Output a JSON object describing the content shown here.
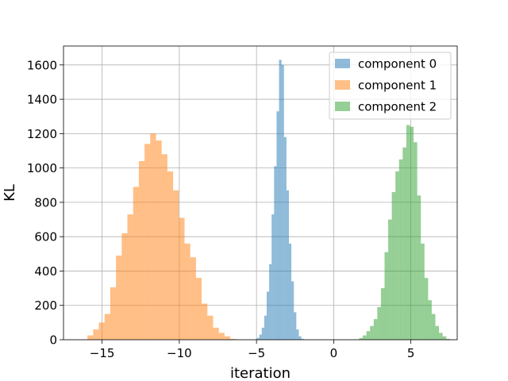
{
  "chart_data": {
    "type": "bar",
    "title": "",
    "xlabel": "iteration",
    "ylabel": "KL",
    "xlim": [
      -17.5,
      8.0
    ],
    "ylim": [
      0,
      1710
    ],
    "grid": true,
    "legend_position": "top-right",
    "xticks": [
      -15,
      -10,
      -5,
      0,
      5
    ],
    "xtick_labels": [
      "−15",
      "−10",
      "−5",
      "0",
      "5"
    ],
    "yticks": [
      0,
      200,
      400,
      600,
      800,
      1000,
      1200,
      1400,
      1600
    ],
    "ytick_labels": [
      "0",
      "200",
      "400",
      "600",
      "800",
      "1000",
      "1200",
      "1400",
      "1600"
    ],
    "series": [
      {
        "name": "component 0",
        "color": "#1f77b4",
        "alpha": 0.5,
        "bin_start": -4.98,
        "bin_width": 0.16,
        "counts": [
          10,
          30,
          70,
          140,
          280,
          440,
          730,
          1010,
          1330,
          1630,
          1600,
          1180,
          870,
          560,
          340,
          160,
          60,
          20,
          5
        ]
      },
      {
        "name": "component 1",
        "color": "#ff7f0e",
        "alpha": 0.5,
        "bin_start": -15.95,
        "bin_width": 0.37,
        "counts": [
          25,
          60,
          100,
          150,
          305,
          490,
          620,
          730,
          890,
          1040,
          1140,
          1200,
          1160,
          1080,
          980,
          870,
          710,
          560,
          480,
          360,
          210,
          140,
          70,
          40,
          20,
          5
        ]
      },
      {
        "name": "component 2",
        "color": "#2ca02c",
        "alpha": 0.5,
        "bin_start": 1.65,
        "bin_width": 0.235,
        "counts": [
          10,
          25,
          50,
          80,
          120,
          190,
          300,
          510,
          700,
          860,
          980,
          1050,
          1120,
          1250,
          1240,
          1150,
          840,
          560,
          360,
          230,
          150,
          80,
          40,
          20,
          5
        ]
      }
    ]
  }
}
